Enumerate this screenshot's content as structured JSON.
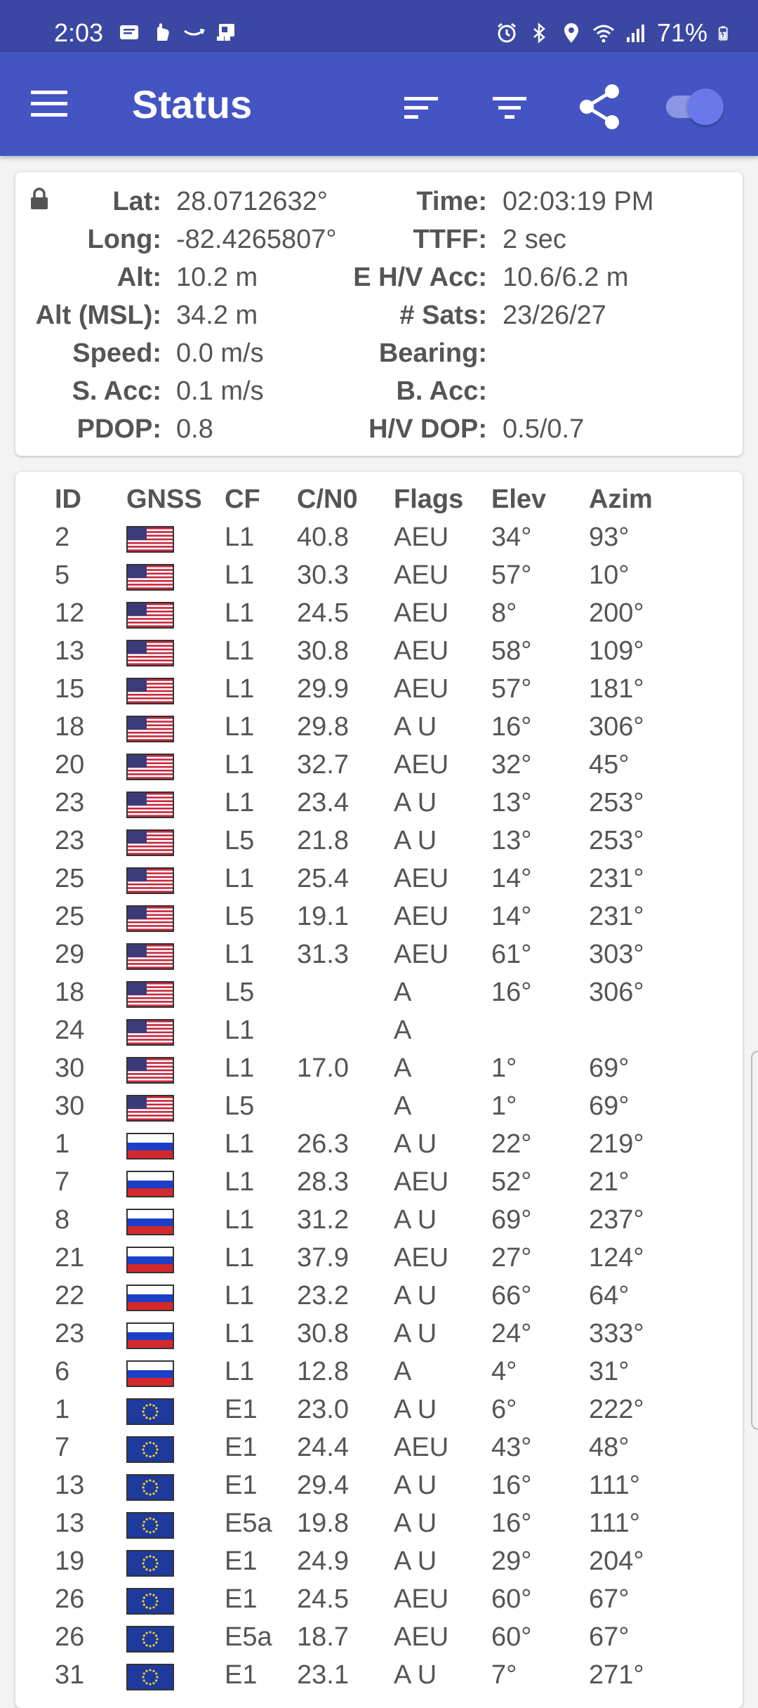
{
  "status_bar": {
    "time": "2:03",
    "battery": "71%",
    "left_icons": [
      "message-icon",
      "gesture-icon",
      "amazon-icon",
      "transit-icon"
    ],
    "right_icons": [
      "alarm-icon",
      "bluetooth-icon",
      "location-icon",
      "wifi-icon",
      "signal-icon",
      "battery-icon"
    ]
  },
  "toolbar": {
    "title": "Status",
    "icons": [
      "menu-icon",
      "sort-icon",
      "filter-icon",
      "share-icon",
      "toggle-switch"
    ],
    "accent": "#4455c3",
    "status_bar_color": "#3b48a3"
  },
  "location": {
    "left": [
      {
        "label": "Lat:",
        "value": "28.0712632°"
      },
      {
        "label": "Long:",
        "value": "-82.4265807°"
      },
      {
        "label": "Alt:",
        "value": "10.2 m"
      },
      {
        "label": "Alt (MSL):",
        "value": "34.2 m"
      },
      {
        "label": "Speed:",
        "value": "0.0 m/s"
      },
      {
        "label": "S. Acc:",
        "value": "0.1 m/s"
      },
      {
        "label": "PDOP:",
        "value": "0.8"
      }
    ],
    "right": [
      {
        "label": "Time:",
        "value": "02:03:19 PM"
      },
      {
        "label": "TTFF:",
        "value": "2 sec"
      },
      {
        "label": "E H/V Acc:",
        "value": "10.6/6.2 m"
      },
      {
        "label": "# Sats:",
        "value": "23/26/27"
      },
      {
        "label": "Bearing:",
        "value": ""
      },
      {
        "label": "B. Acc:",
        "value": ""
      },
      {
        "label": "H/V DOP:",
        "value": "0.5/0.7"
      }
    ]
  },
  "satellites": {
    "headers": [
      "ID",
      "GNSS",
      "CF",
      "C/N0",
      "Flags",
      "Elev",
      "Azim"
    ],
    "rows": [
      {
        "id": "2",
        "gnss": "us",
        "cf": "L1",
        "cn0": "40.8",
        "flags": "AEU",
        "elev": "34°",
        "azim": "93°"
      },
      {
        "id": "5",
        "gnss": "us",
        "cf": "L1",
        "cn0": "30.3",
        "flags": "AEU",
        "elev": "57°",
        "azim": "10°"
      },
      {
        "id": "12",
        "gnss": "us",
        "cf": "L1",
        "cn0": "24.5",
        "flags": "AEU",
        "elev": "8°",
        "azim": "200°"
      },
      {
        "id": "13",
        "gnss": "us",
        "cf": "L1",
        "cn0": "30.8",
        "flags": "AEU",
        "elev": "58°",
        "azim": "109°"
      },
      {
        "id": "15",
        "gnss": "us",
        "cf": "L1",
        "cn0": "29.9",
        "flags": "AEU",
        "elev": "57°",
        "azim": "181°"
      },
      {
        "id": "18",
        "gnss": "us",
        "cf": "L1",
        "cn0": "29.8",
        "flags": "A U",
        "elev": "16°",
        "azim": "306°"
      },
      {
        "id": "20",
        "gnss": "us",
        "cf": "L1",
        "cn0": "32.7",
        "flags": "AEU",
        "elev": "32°",
        "azim": "45°"
      },
      {
        "id": "23",
        "gnss": "us",
        "cf": "L1",
        "cn0": "23.4",
        "flags": "A U",
        "elev": "13°",
        "azim": "253°"
      },
      {
        "id": "23",
        "gnss": "us",
        "cf": "L5",
        "cn0": "21.8",
        "flags": "A U",
        "elev": "13°",
        "azim": "253°"
      },
      {
        "id": "25",
        "gnss": "us",
        "cf": "L1",
        "cn0": "25.4",
        "flags": "AEU",
        "elev": "14°",
        "azim": "231°"
      },
      {
        "id": "25",
        "gnss": "us",
        "cf": "L5",
        "cn0": "19.1",
        "flags": "AEU",
        "elev": "14°",
        "azim": "231°"
      },
      {
        "id": "29",
        "gnss": "us",
        "cf": "L1",
        "cn0": "31.3",
        "flags": "AEU",
        "elev": "61°",
        "azim": "303°"
      },
      {
        "id": "18",
        "gnss": "us",
        "cf": "L5",
        "cn0": "",
        "flags": "A",
        "elev": "16°",
        "azim": "306°"
      },
      {
        "id": "24",
        "gnss": "us",
        "cf": "L1",
        "cn0": "",
        "flags": "A",
        "elev": "",
        "azim": ""
      },
      {
        "id": "30",
        "gnss": "us",
        "cf": "L1",
        "cn0": "17.0",
        "flags": "A",
        "elev": "1°",
        "azim": "69°"
      },
      {
        "id": "30",
        "gnss": "us",
        "cf": "L5",
        "cn0": "",
        "flags": "A",
        "elev": "1°",
        "azim": "69°"
      },
      {
        "id": "1",
        "gnss": "ru",
        "cf": "L1",
        "cn0": "26.3",
        "flags": "A U",
        "elev": "22°",
        "azim": "219°"
      },
      {
        "id": "7",
        "gnss": "ru",
        "cf": "L1",
        "cn0": "28.3",
        "flags": "AEU",
        "elev": "52°",
        "azim": "21°"
      },
      {
        "id": "8",
        "gnss": "ru",
        "cf": "L1",
        "cn0": "31.2",
        "flags": "A U",
        "elev": "69°",
        "azim": "237°"
      },
      {
        "id": "21",
        "gnss": "ru",
        "cf": "L1",
        "cn0": "37.9",
        "flags": "AEU",
        "elev": "27°",
        "azim": "124°"
      },
      {
        "id": "22",
        "gnss": "ru",
        "cf": "L1",
        "cn0": "23.2",
        "flags": "A U",
        "elev": "66°",
        "azim": "64°"
      },
      {
        "id": "23",
        "gnss": "ru",
        "cf": "L1",
        "cn0": "30.8",
        "flags": "A U",
        "elev": "24°",
        "azim": "333°"
      },
      {
        "id": "6",
        "gnss": "ru",
        "cf": "L1",
        "cn0": "12.8",
        "flags": "A",
        "elev": "4°",
        "azim": "31°"
      },
      {
        "id": "1",
        "gnss": "eu",
        "cf": "E1",
        "cn0": "23.0",
        "flags": "A U",
        "elev": "6°",
        "azim": "222°"
      },
      {
        "id": "7",
        "gnss": "eu",
        "cf": "E1",
        "cn0": "24.4",
        "flags": "AEU",
        "elev": "43°",
        "azim": "48°"
      },
      {
        "id": "13",
        "gnss": "eu",
        "cf": "E1",
        "cn0": "29.4",
        "flags": "A U",
        "elev": "16°",
        "azim": "111°"
      },
      {
        "id": "13",
        "gnss": "eu",
        "cf": "E5a",
        "cn0": "19.8",
        "flags": "A U",
        "elev": "16°",
        "azim": "111°"
      },
      {
        "id": "19",
        "gnss": "eu",
        "cf": "E1",
        "cn0": "24.9",
        "flags": "A U",
        "elev": "29°",
        "azim": "204°"
      },
      {
        "id": "26",
        "gnss": "eu",
        "cf": "E1",
        "cn0": "24.5",
        "flags": "AEU",
        "elev": "60°",
        "azim": "67°"
      },
      {
        "id": "26",
        "gnss": "eu",
        "cf": "E5a",
        "cn0": "18.7",
        "flags": "AEU",
        "elev": "60°",
        "azim": "67°"
      },
      {
        "id": "31",
        "gnss": "eu",
        "cf": "E1",
        "cn0": "23.1",
        "flags": "A U",
        "elev": "7°",
        "azim": "271°"
      }
    ]
  }
}
